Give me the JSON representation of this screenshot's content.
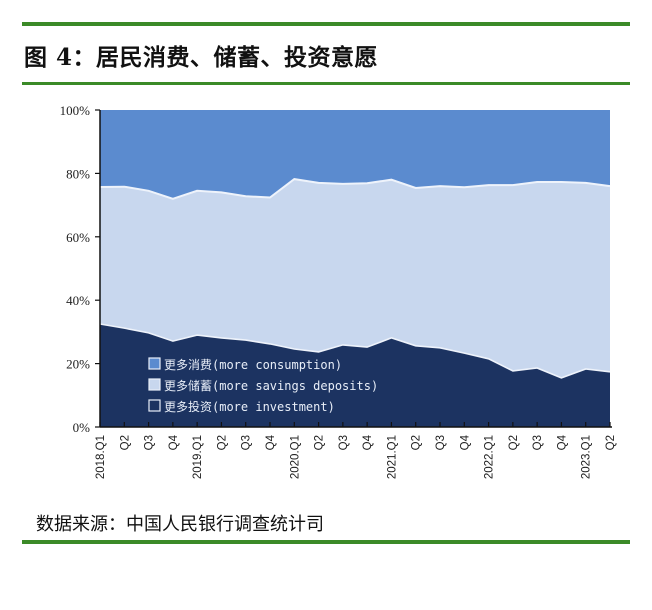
{
  "figure": {
    "title": "图 4：居民消费、储蓄、投资意愿",
    "source": "数据来源：中国人民银行调查统计司"
  },
  "colors": {
    "consumption": "#5b8bcf",
    "savings": "#c8d7ee",
    "investment": "#1c3361",
    "rule_green": "#3b8a28"
  },
  "chart_data": {
    "type": "area",
    "stacked": true,
    "normalized": true,
    "title": "居民消费、储蓄、投资意愿",
    "xlabel": "",
    "ylabel": "",
    "ylim": [
      0,
      100
    ],
    "y_ticks": [
      "0%",
      "20%",
      "40%",
      "60%",
      "80%",
      "100%"
    ],
    "grid": false,
    "legend_position": "inside-bottom-left",
    "categories": [
      "2018.Q1",
      "Q2",
      "Q3",
      "Q4",
      "2019.Q1",
      "Q2",
      "Q3",
      "Q4",
      "2020.Q1",
      "Q2",
      "Q3",
      "Q4",
      "2021.Q1",
      "Q2",
      "Q3",
      "Q4",
      "2022.Q1",
      "Q2",
      "Q3",
      "Q4",
      "2023.Q1",
      "Q2"
    ],
    "series": [
      {
        "name": "更多投资(more investment)",
        "values": [
          32.5,
          31.2,
          29.7,
          27.1,
          29.0,
          28.1,
          27.4,
          26.2,
          24.6,
          23.7,
          25.9,
          25.2,
          28.1,
          25.6,
          25.0,
          23.3,
          21.5,
          17.7,
          18.6,
          15.5,
          18.3,
          17.4
        ]
      },
      {
        "name": "更多储蓄(more savings deposits)",
        "values": [
          43.2,
          44.6,
          44.8,
          44.9,
          45.5,
          45.9,
          45.4,
          46.2,
          53.6,
          53.3,
          50.8,
          51.7,
          49.9,
          49.8,
          51.0,
          52.3,
          54.8,
          58.6,
          58.7,
          61.8,
          58.7,
          58.6
        ]
      },
      {
        "name": "更多消费(more consumption)",
        "values": [
          24.3,
          24.2,
          25.5,
          28.0,
          25.5,
          26.0,
          27.2,
          27.6,
          21.8,
          23.0,
          23.3,
          23.1,
          22.0,
          24.6,
          24.0,
          24.4,
          23.7,
          23.7,
          22.7,
          22.7,
          23.0,
          24.0
        ]
      }
    ],
    "cumulative_upper_boundary_savings": [
      75.7,
      75.8,
      74.5,
      72.0,
      74.5,
      74.0,
      72.8,
      72.4,
      78.2,
      77.0,
      76.7,
      76.9,
      78.0,
      75.4,
      76.0,
      75.6,
      76.3,
      76.3,
      77.3,
      77.3,
      77.0,
      76.0
    ]
  },
  "legend": [
    {
      "label": "更多消费(more consumption)",
      "swatch": "consumption"
    },
    {
      "label": "更多储蓄(more savings deposits)",
      "swatch": "savings"
    },
    {
      "label": "更多投资(more investment)",
      "swatch": "investment"
    }
  ]
}
